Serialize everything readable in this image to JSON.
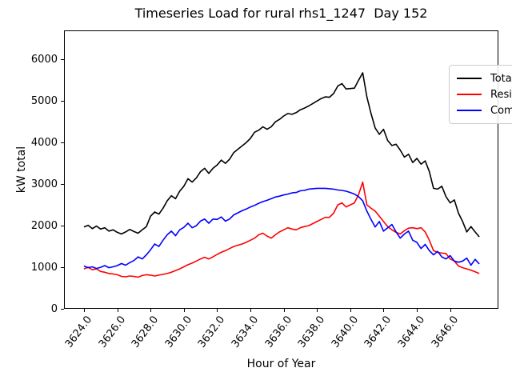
{
  "chart_data": {
    "type": "line",
    "title": "Timeseries Load for rural rhs1_1247  Day 152",
    "xlabel": "Hour of Year",
    "ylabel": "kW total",
    "xlim": [
      3622.8,
      3648.9
    ],
    "ylim": [
      0,
      6700
    ],
    "grid": false,
    "legend": {
      "position": "upper right"
    },
    "x_ticks": [
      3624,
      3626,
      3628,
      3630,
      3632,
      3634,
      3636,
      3638,
      3640,
      3642,
      3644,
      3646
    ],
    "x_tick_labels": [
      "3624.0",
      "3626.0",
      "3628.0",
      "3630.0",
      "3632.0",
      "3634.0",
      "3636.0",
      "3638.0",
      "3640.0",
      "3642.0",
      "3644.0",
      "3646.0"
    ],
    "y_ticks": [
      0,
      1000,
      2000,
      3000,
      4000,
      5000,
      6000
    ],
    "y_tick_labels": [
      "0",
      "1000",
      "2000",
      "3000",
      "4000",
      "5000",
      "6000"
    ],
    "x": [
      3624.0,
      3624.25,
      3624.5,
      3624.75,
      3625.0,
      3625.25,
      3625.5,
      3625.75,
      3626.0,
      3626.25,
      3626.5,
      3626.75,
      3627.0,
      3627.25,
      3627.5,
      3627.75,
      3628.0,
      3628.25,
      3628.5,
      3628.75,
      3629.0,
      3629.25,
      3629.5,
      3629.75,
      3630.0,
      3630.25,
      3630.5,
      3630.75,
      3631.0,
      3631.25,
      3631.5,
      3631.75,
      3632.0,
      3632.25,
      3632.5,
      3632.75,
      3633.0,
      3633.25,
      3633.5,
      3633.75,
      3634.0,
      3634.25,
      3634.5,
      3634.75,
      3635.0,
      3635.25,
      3635.5,
      3635.75,
      3636.0,
      3636.25,
      3636.5,
      3636.75,
      3637.0,
      3637.25,
      3637.5,
      3637.75,
      3638.0,
      3638.25,
      3638.5,
      3638.75,
      3639.0,
      3639.25,
      3639.5,
      3639.75,
      3640.0,
      3640.25,
      3640.5,
      3640.75,
      3641.0,
      3641.25,
      3641.5,
      3641.75,
      3642.0,
      3642.25,
      3642.5,
      3642.75,
      3643.0,
      3643.25,
      3643.5,
      3643.75,
      3644.0,
      3644.25,
      3644.5,
      3644.75,
      3645.0,
      3645.25,
      3645.5,
      3645.75,
      3646.0,
      3646.25,
      3646.5,
      3646.75,
      3647.0,
      3647.25,
      3647.5,
      3647.75
    ],
    "series": [
      {
        "name": "Total",
        "color": "#000000",
        "values": [
          1970,
          2010,
          1930,
          1990,
          1920,
          1950,
          1870,
          1900,
          1840,
          1800,
          1850,
          1910,
          1860,
          1820,
          1900,
          1980,
          2230,
          2330,
          2280,
          2420,
          2600,
          2720,
          2650,
          2830,
          2950,
          3130,
          3050,
          3150,
          3300,
          3380,
          3260,
          3380,
          3460,
          3580,
          3500,
          3600,
          3760,
          3840,
          3920,
          4000,
          4100,
          4250,
          4300,
          4380,
          4320,
          4380,
          4500,
          4560,
          4640,
          4700,
          4680,
          4720,
          4790,
          4830,
          4880,
          4940,
          5000,
          5060,
          5100,
          5090,
          5180,
          5360,
          5420,
          5290,
          5300,
          5310,
          5500,
          5680,
          5100,
          4700,
          4350,
          4200,
          4320,
          4050,
          3930,
          3960,
          3820,
          3650,
          3720,
          3520,
          3620,
          3480,
          3560,
          3300,
          2900,
          2880,
          2950,
          2700,
          2550,
          2620,
          2300,
          2100,
          1850,
          1980,
          1850,
          1730
        ]
      },
      {
        "name": "Residential",
        "color": "#ff0000",
        "values": [
          960,
          1000,
          940,
          960,
          900,
          880,
          850,
          840,
          820,
          780,
          770,
          790,
          780,
          760,
          800,
          820,
          810,
          790,
          810,
          830,
          850,
          880,
          920,
          960,
          1010,
          1060,
          1100,
          1150,
          1200,
          1240,
          1200,
          1250,
          1310,
          1360,
          1400,
          1450,
          1500,
          1530,
          1560,
          1600,
          1650,
          1700,
          1780,
          1820,
          1750,
          1700,
          1780,
          1850,
          1900,
          1950,
          1920,
          1900,
          1950,
          1980,
          2000,
          2050,
          2100,
          2150,
          2200,
          2200,
          2300,
          2500,
          2550,
          2450,
          2500,
          2550,
          2750,
          3050,
          2500,
          2420,
          2350,
          2230,
          2100,
          1980,
          1900,
          1840,
          1800,
          1880,
          1940,
          1950,
          1930,
          1950,
          1850,
          1650,
          1400,
          1360,
          1340,
          1330,
          1200,
          1150,
          1030,
          990,
          960,
          930,
          890,
          850
        ]
      },
      {
        "name": "Commercial",
        "color": "#0000ff",
        "values": [
          1030,
          990,
          1010,
          970,
          1000,
          1040,
          990,
          1010,
          1040,
          1090,
          1050,
          1110,
          1160,
          1250,
          1200,
          1300,
          1420,
          1560,
          1500,
          1650,
          1780,
          1870,
          1760,
          1900,
          1960,
          2060,
          1950,
          2000,
          2110,
          2160,
          2060,
          2160,
          2150,
          2210,
          2110,
          2160,
          2260,
          2310,
          2360,
          2400,
          2450,
          2490,
          2540,
          2580,
          2610,
          2650,
          2690,
          2710,
          2740,
          2760,
          2790,
          2800,
          2840,
          2850,
          2880,
          2890,
          2900,
          2900,
          2900,
          2890,
          2880,
          2860,
          2850,
          2830,
          2800,
          2760,
          2700,
          2600,
          2350,
          2150,
          1970,
          2100,
          1870,
          1950,
          2030,
          1850,
          1700,
          1800,
          1870,
          1650,
          1600,
          1450,
          1550,
          1400,
          1300,
          1380,
          1250,
          1200,
          1280,
          1150,
          1120,
          1150,
          1220,
          1050,
          1190,
          1080
        ]
      }
    ]
  }
}
